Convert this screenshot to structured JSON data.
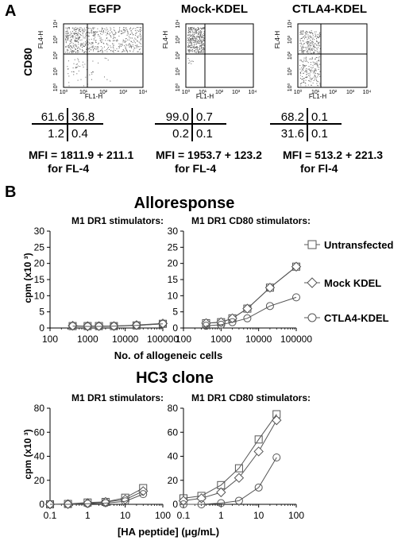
{
  "panel_a": {
    "label": "A",
    "y_outer_label": "CD80",
    "flow_plots": [
      {
        "title": "EGFP",
        "y_axis": "FL4-H",
        "x_axis": "FL1-H",
        "ticks": [
          "10⁰",
          "10¹",
          "10²",
          "10³",
          "10⁴"
        ],
        "quadrants": {
          "ul": "61.6",
          "ur": "36.8",
          "ll": "1.2",
          "lr": "0.4"
        },
        "mfi_line1": "MFI = 1811.9 + 211.1",
        "mfi_line2": "for FL-4"
      },
      {
        "title": "Mock-KDEL",
        "y_axis": "FL4-H",
        "x_axis": "FL1-H",
        "ticks": [
          "10⁰",
          "10¹",
          "10²",
          "10³",
          "10⁴"
        ],
        "quadrants": {
          "ul": "99.0",
          "ur": "0.7",
          "ll": "0.2",
          "lr": "0.1"
        },
        "mfi_line1": "MFI = 1953.7 + 123.2",
        "mfi_line2": "for FL-4"
      },
      {
        "title": "CTLA4-KDEL",
        "y_axis": "FL4-H",
        "x_axis": "FL1-H",
        "ticks": [
          "10⁰",
          "10¹",
          "10²",
          "10³",
          "10⁴"
        ],
        "quadrants": {
          "ul": "68.2",
          "ur": "0.1",
          "ll": "31.6",
          "lr": "0.1"
        },
        "mfi_line1": "MFI = 513.2 + 221.3",
        "mfi_line2": "for Fl-4"
      }
    ]
  },
  "panel_b": {
    "label": "B",
    "section1_title": "Alloresponse",
    "section2_title": "HC3 clone",
    "legend": [
      "Untransfected",
      "Mock KDEL",
      "CTLA4-KDEL"
    ]
  },
  "chart_data": [
    {
      "type": "line",
      "title": "M1 DR1 stimulators:",
      "ylabel": "cpm (x10 ³)",
      "xlabel": "No. of allogeneic cells",
      "xscale": "log",
      "xlim": [
        100,
        100000
      ],
      "ylim": [
        0,
        30
      ],
      "x_ticks": [
        "100",
        "1000",
        "10000",
        "100000"
      ],
      "y_ticks": [
        "0",
        "5",
        "10",
        "15",
        "20",
        "25",
        "30"
      ],
      "x": [
        400,
        1000,
        2000,
        5000,
        20000,
        100000
      ],
      "series": [
        {
          "name": "Untransfected",
          "marker": "square",
          "values": [
            0.6,
            0.6,
            0.6,
            0.6,
            0.8,
            1.3
          ]
        },
        {
          "name": "Mock KDEL",
          "marker": "diamond",
          "values": [
            0.7,
            0.6,
            0.6,
            0.6,
            0.9,
            1.4
          ]
        },
        {
          "name": "CTLA4-KDEL",
          "marker": "circle",
          "values": [
            0.6,
            0.5,
            0.5,
            0.6,
            0.8,
            1.3
          ]
        }
      ]
    },
    {
      "type": "line",
      "title": "M1 DR1 CD80 stimulators:",
      "xscale": "log",
      "xlim": [
        100,
        100000
      ],
      "ylim": [
        0,
        30
      ],
      "x_ticks": [
        "100",
        "1000",
        "10000",
        "100000"
      ],
      "y_ticks": [
        "0",
        "5",
        "10",
        "15",
        "20",
        "25",
        "30"
      ],
      "x": [
        400,
        1000,
        2000,
        5000,
        20000,
        100000
      ],
      "series": [
        {
          "name": "Untransfected",
          "marker": "square",
          "values": [
            1.5,
            1.8,
            3.0,
            6.0,
            12.5,
            19.0
          ]
        },
        {
          "name": "Mock KDEL",
          "marker": "diamond",
          "values": [
            1.5,
            1.8,
            3.0,
            6.0,
            12.5,
            19.0
          ]
        },
        {
          "name": "CTLA4-KDEL",
          "marker": "circle",
          "values": [
            0.7,
            1.0,
            1.8,
            3.0,
            6.8,
            9.5
          ]
        }
      ]
    },
    {
      "type": "line",
      "title": "M1 DR1 stimulators:",
      "ylabel": "cpm (x10 ³)",
      "xlabel": "[HA peptide]  (μg/mL)",
      "xscale": "log",
      "xlim": [
        0.1,
        100
      ],
      "ylim": [
        0,
        80
      ],
      "x_ticks": [
        "0.1",
        "1",
        "10",
        "100"
      ],
      "y_ticks": [
        "0",
        "20",
        "40",
        "60",
        "80"
      ],
      "x": [
        0.1,
        0.3,
        1,
        3,
        10,
        30
      ],
      "series": [
        {
          "name": "Untransfected",
          "marker": "square",
          "values": [
            0,
            0.3,
            1.5,
            2.0,
            5.5,
            13.5
          ]
        },
        {
          "name": "Mock KDEL",
          "marker": "diamond",
          "values": [
            0,
            0.2,
            1.0,
            2.0,
            4.0,
            11.0
          ]
        },
        {
          "name": "CTLA4-KDEL",
          "marker": "circle",
          "values": [
            0,
            0,
            0.5,
            1.0,
            2.5,
            8.5
          ]
        }
      ]
    },
    {
      "type": "line",
      "title": "M1 DR1 CD80 stimulators:",
      "xscale": "log",
      "xlim": [
        0.1,
        100
      ],
      "ylim": [
        0,
        80
      ],
      "x_ticks": [
        "0.1",
        "1",
        "10",
        "100"
      ],
      "y_ticks": [
        "0",
        "20",
        "40",
        "60",
        "80"
      ],
      "x": [
        0.1,
        0.3,
        1,
        3,
        10,
        30
      ],
      "series": [
        {
          "name": "Untransfected",
          "marker": "square",
          "values": [
            5,
            7,
            16,
            30,
            54,
            75
          ]
        },
        {
          "name": "Mock KDEL",
          "marker": "diamond",
          "values": [
            3,
            5,
            10,
            22,
            44,
            70
          ]
        },
        {
          "name": "CTLA4-KDEL",
          "marker": "circle",
          "values": [
            0,
            0,
            1,
            3,
            14,
            39
          ]
        }
      ]
    }
  ]
}
